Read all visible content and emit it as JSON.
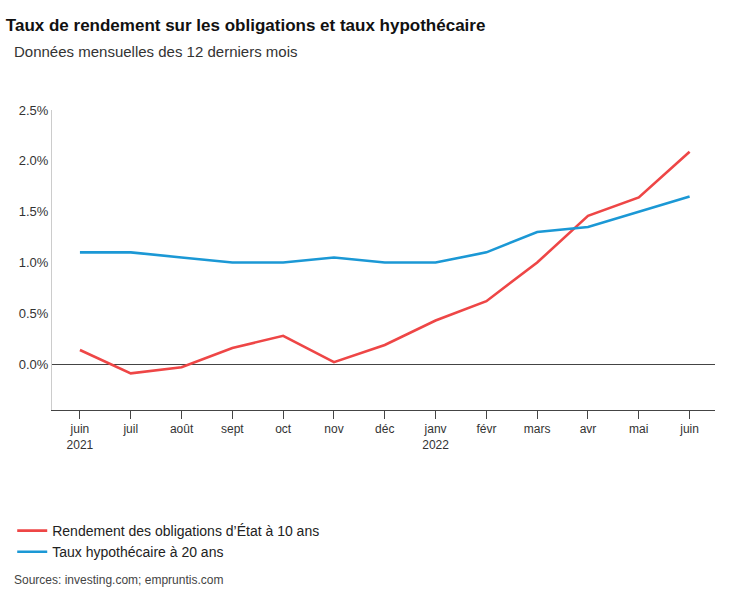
{
  "chart_data": {
    "type": "line",
    "title": "Taux de rendement sur les obligations et taux hypothécaire",
    "subtitle": "Données mensuelles des 12 derniers mois",
    "categories": [
      "juin\n2021",
      "juil",
      "août",
      "sept",
      "oct",
      "nov",
      "déc",
      "janv\n2022",
      "févr",
      "mars",
      "avr",
      "mai",
      "juin"
    ],
    "series": [
      {
        "name": "Rendement des obligations d’État à 10 ans",
        "color": "#ee4646",
        "values": [
          0.14,
          -0.09,
          -0.03,
          0.16,
          0.28,
          0.02,
          0.19,
          0.43,
          0.62,
          1.0,
          1.46,
          1.64,
          2.09
        ]
      },
      {
        "name": "Taux hypothécaire à 20 ans",
        "color": "#1b98d5",
        "values": [
          1.1,
          1.1,
          1.05,
          1.0,
          1.0,
          1.05,
          1.0,
          1.0,
          1.1,
          1.3,
          1.35,
          1.5,
          1.65
        ]
      }
    ],
    "ylim": [
      -0.45,
      2.5
    ],
    "yticks": [
      {
        "value": 0,
        "label": "0.0%"
      },
      {
        "value": 0.5,
        "label": "0.5%"
      },
      {
        "value": 1,
        "label": "1.0%"
      },
      {
        "value": 1.5,
        "label": "1.5%"
      },
      {
        "value": 2,
        "label": "2.0%"
      },
      {
        "value": 2.5,
        "label": "2.5%"
      }
    ],
    "grid": false,
    "legend": "bottom",
    "source": "Sources: investing.com; empruntis.com"
  }
}
